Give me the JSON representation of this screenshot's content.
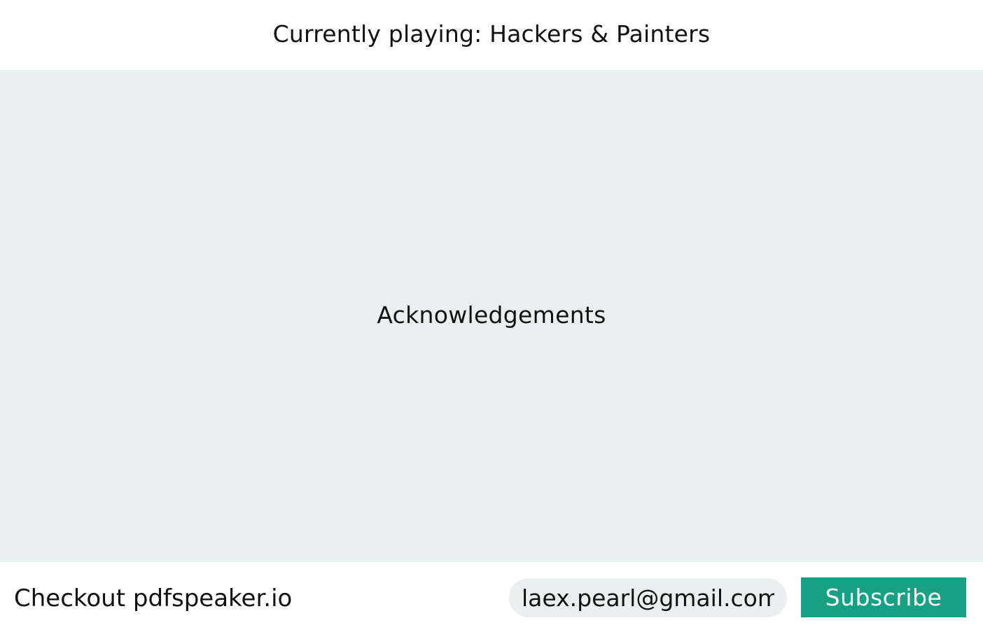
{
  "header": {
    "now_playing": "Currently playing: Hackers & Painters"
  },
  "main": {
    "section_title": "Acknowledgements"
  },
  "footer": {
    "promo_text": "Checkout pdfspeaker.io",
    "email_value": "laex.pearl@gmail.com",
    "subscribe_label": "Subscribe"
  },
  "colors": {
    "stage_background": "#ebeff0",
    "accent": "#18a085"
  }
}
